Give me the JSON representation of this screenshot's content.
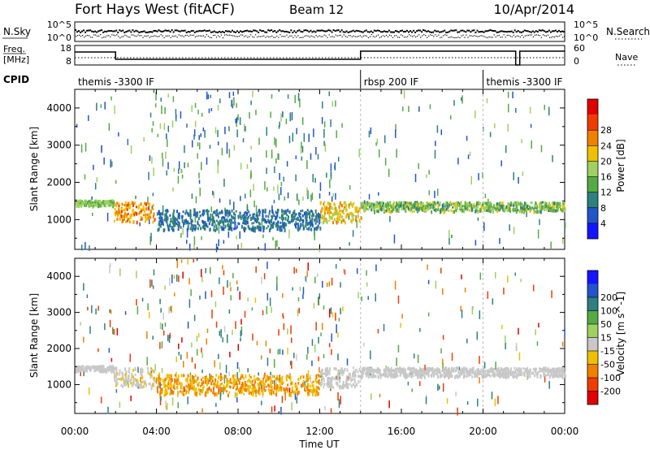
{
  "header": {
    "site": "Fort Hays West (fitACF)",
    "beam": "Beam 12",
    "date": "10/Apr/2014"
  },
  "noise_panel": {
    "left_label": "N.Sky",
    "left_ticks": [
      "10^5",
      "10^0"
    ],
    "right_ticks": [
      "10^5",
      "10^0"
    ],
    "right_label": "N.Search"
  },
  "freq_panel": {
    "left_label_1": "Freq.",
    "left_label_2": "[MHz]",
    "left_ticks": [
      "18",
      "8"
    ],
    "right_ticks": [
      "60",
      "0"
    ],
    "right_label": "Nave"
  },
  "cpid": {
    "label": "CPID",
    "segments": [
      {
        "text": "themis -3300 IF",
        "start_h": 0,
        "end_h": 14
      },
      {
        "text": "rbsp 200 IF",
        "start_h": 14,
        "end_h": 20
      },
      {
        "text": "themis -3300 IF",
        "start_h": 20,
        "end_h": 24
      }
    ]
  },
  "colors": {
    "power": [
      "#1515ff",
      "#2255cc",
      "#2e7f7f",
      "#55aa44",
      "#9fd060",
      "#f0c000",
      "#f08000",
      "#f03c00",
      "#e00000"
    ],
    "velocity": [
      "#e00000",
      "#f03c00",
      "#f08000",
      "#f0c000",
      "#c8c8c8",
      "#9fd060",
      "#55aa44",
      "#2e7f7f",
      "#2255cc",
      "#1515ff"
    ]
  },
  "chart_data": [
    {
      "type": "heatmap",
      "name": "power-panel",
      "ylabel": "Slant Range [km]",
      "ylim": [
        200,
        4500
      ],
      "yticks": [
        "1000",
        "2000",
        "3000",
        "4000"
      ],
      "colorbar_label": "Power [dB]",
      "colorbar_ticks": [
        "4",
        "8",
        "12",
        "16",
        "20",
        "24",
        "28"
      ],
      "colorbar_range": [
        0,
        32
      ],
      "echo_bands": [
        {
          "t": [
            1.9,
            3.9
          ],
          "range_km": [
            950,
            1500
          ],
          "power_db": [
            20,
            30
          ]
        },
        {
          "t": [
            4.0,
            12.0
          ],
          "range_km": [
            750,
            1300
          ],
          "power_db": [
            6,
            12
          ]
        },
        {
          "t": [
            12.0,
            14.0
          ],
          "range_km": [
            950,
            1500
          ],
          "power_db": [
            18,
            26
          ]
        },
        {
          "t": [
            14.0,
            24.0
          ],
          "range_km": [
            1250,
            1500
          ],
          "power_db": [
            10,
            22
          ]
        },
        {
          "t": [
            0.0,
            1.9
          ],
          "range_km": [
            1400,
            1550
          ],
          "power_db": [
            14,
            20
          ]
        }
      ]
    },
    {
      "type": "heatmap",
      "name": "velocity-panel",
      "ylabel": "Slant Range [km]",
      "ylim": [
        200,
        4500
      ],
      "yticks": [
        "1000",
        "2000",
        "3000",
        "4000"
      ],
      "colorbar_label": "Velocity [m s^-1]",
      "colorbar_ticks": [
        "-200",
        "-100",
        "-50",
        "-15",
        "15",
        "50",
        "100",
        "200"
      ],
      "colorbar_range": [
        -250,
        250
      ],
      "echo_bands": [
        {
          "t": [
            1.9,
            3.9
          ],
          "range_km": [
            950,
            1500
          ],
          "velocity_ms": [
            -20,
            10
          ]
        },
        {
          "t": [
            4.0,
            12.0
          ],
          "range_km": [
            750,
            1300
          ],
          "velocity_ms": [
            -80,
            -20
          ]
        },
        {
          "t": [
            12.0,
            14.0
          ],
          "range_km": [
            950,
            1500
          ],
          "velocity_ms": [
            -15,
            15
          ]
        },
        {
          "t": [
            14.0,
            24.0
          ],
          "range_km": [
            1250,
            1500
          ],
          "velocity_ms": [
            -15,
            15
          ]
        },
        {
          "t": [
            0.0,
            1.9
          ],
          "range_km": [
            1400,
            1550
          ],
          "velocity_ms": [
            -15,
            15
          ]
        }
      ]
    }
  ],
  "x_axis": {
    "ticks": [
      "00:00",
      "04:00",
      "08:00",
      "12:00",
      "16:00",
      "20:00",
      "00:00"
    ],
    "label": "Time UT",
    "range_h": [
      0,
      24
    ]
  }
}
